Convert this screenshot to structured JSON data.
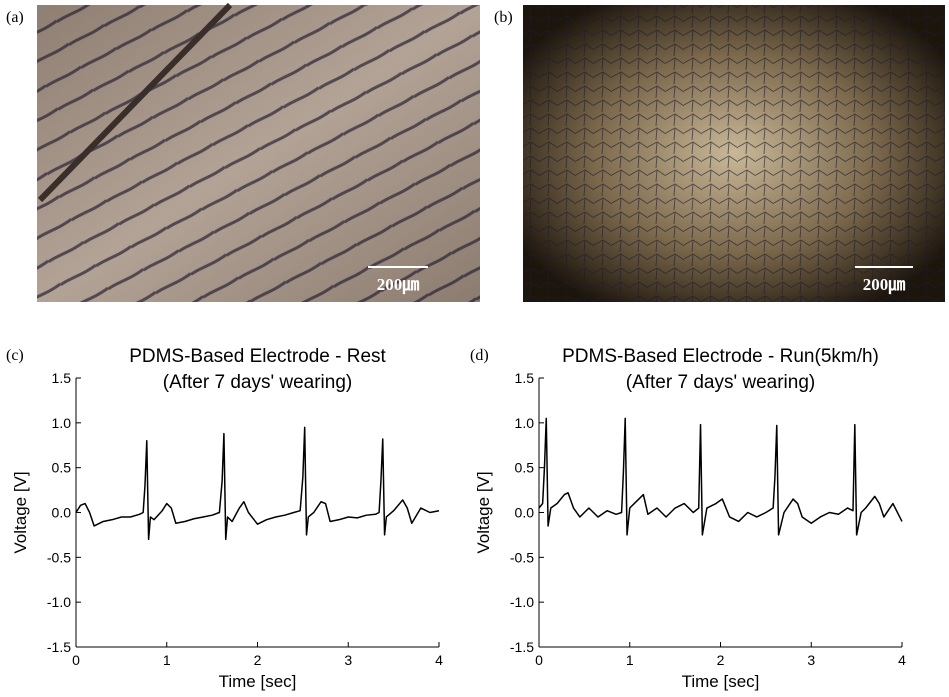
{
  "images": [
    {
      "label": "(a)",
      "scale_bar": "200㎛"
    },
    {
      "label": "(b)",
      "scale_bar": "200㎛"
    }
  ],
  "chart_data": [
    {
      "type": "line",
      "label": "(c)",
      "title": "PDMS-Based Electrode - Rest",
      "subtitle": "(After 7 days' wearing)",
      "x_label": "Time [sec]",
      "y_label": "Voltage [V]",
      "color": "#000000",
      "xlim": [
        0,
        4
      ],
      "ylim": [
        -1.5,
        1.5
      ],
      "xticks": [
        0,
        1,
        2,
        3,
        4
      ],
      "yticks": [
        -1.5,
        {
          "value": -1,
          "label": "-1.0"
        },
        -0.5,
        {
          "value": 0,
          "label": "0.0"
        },
        0.5,
        {
          "value": 1,
          "label": "1.0"
        },
        1.5
      ],
      "x": [
        0,
        0.05,
        0.1,
        0.15,
        0.2,
        0.3,
        0.4,
        0.5,
        0.6,
        0.7,
        0.74,
        0.76,
        0.78,
        0.8,
        0.82,
        0.86,
        0.95,
        1.0,
        1.05,
        1.1,
        1.2,
        1.3,
        1.4,
        1.5,
        1.58,
        1.61,
        1.63,
        1.65,
        1.67,
        1.72,
        1.8,
        1.85,
        1.9,
        2.0,
        2.1,
        2.2,
        2.3,
        2.4,
        2.47,
        2.5,
        2.52,
        2.54,
        2.56,
        2.62,
        2.7,
        2.75,
        2.8,
        2.9,
        3.0,
        3.1,
        3.2,
        3.3,
        3.34,
        3.36,
        3.38,
        3.4,
        3.42,
        3.5,
        3.6,
        3.65,
        3.7,
        3.8,
        3.9,
        4.0
      ],
      "values": [
        0,
        0.08,
        0.1,
        0,
        -0.15,
        -0.1,
        -0.08,
        -0.05,
        -0.05,
        -0.02,
        0,
        0.3,
        0.8,
        -0.3,
        -0.05,
        -0.08,
        0.02,
        0.1,
        0.05,
        -0.12,
        -0.1,
        -0.07,
        -0.05,
        -0.03,
        0,
        0.35,
        0.88,
        -0.3,
        -0.05,
        -0.1,
        0.05,
        0.12,
        0,
        -0.13,
        -0.08,
        -0.05,
        -0.03,
        0,
        0.02,
        0.4,
        0.95,
        -0.25,
        -0.05,
        0,
        0.12,
        0.1,
        -0.1,
        -0.08,
        -0.05,
        -0.06,
        -0.03,
        -0.02,
        0,
        0.35,
        0.82,
        -0.25,
        -0.05,
        0.02,
        0.14,
        0.05,
        -0.12,
        0.05,
        0,
        0.02
      ]
    },
    {
      "type": "line",
      "label": "(d)",
      "title": "PDMS-Based Electrode - Run(5km/h)",
      "subtitle": "(After 7 days' wearing)",
      "x_label": "Time [sec]",
      "y_label": "Voltage [V]",
      "color": "#000000",
      "xlim": [
        0,
        4
      ],
      "ylim": [
        -1.5,
        1.5
      ],
      "xticks": [
        0,
        1,
        2,
        3,
        4
      ],
      "yticks": [
        -1.5,
        {
          "value": -1,
          "label": "-1.0"
        },
        -0.5,
        {
          "value": 0,
          "label": "0.0"
        },
        0.5,
        {
          "value": 1,
          "label": "1.0"
        },
        1.5
      ],
      "x": [
        0,
        0.04,
        0.06,
        0.08,
        0.1,
        0.13,
        0.2,
        0.28,
        0.32,
        0.38,
        0.45,
        0.55,
        0.65,
        0.75,
        0.85,
        0.91,
        0.93,
        0.95,
        0.97,
        1.0,
        1.1,
        1.15,
        1.2,
        1.3,
        1.4,
        1.5,
        1.6,
        1.7,
        1.76,
        1.78,
        1.8,
        1.85,
        1.95,
        2.02,
        2.1,
        2.2,
        2.3,
        2.4,
        2.5,
        2.58,
        2.6,
        2.62,
        2.64,
        2.7,
        2.8,
        2.85,
        2.9,
        3.0,
        3.1,
        3.2,
        3.3,
        3.4,
        3.46,
        3.48,
        3.5,
        3.55,
        3.6,
        3.7,
        3.75,
        3.8,
        3.9,
        4.0
      ],
      "values": [
        0.05,
        0.1,
        0.5,
        1.05,
        -0.15,
        0.05,
        0.1,
        0.2,
        0.22,
        0.05,
        -0.05,
        0.05,
        -0.05,
        0.02,
        -0.02,
        0,
        0.45,
        1.05,
        -0.25,
        0.05,
        0.15,
        0.2,
        -0.02,
        0.05,
        -0.05,
        0.05,
        0.1,
        0,
        0.05,
        0.98,
        -0.25,
        0.05,
        0.1,
        0.15,
        -0.05,
        -0.1,
        0,
        -0.05,
        0,
        0.05,
        0.4,
        0.97,
        -0.25,
        0,
        0.15,
        0.1,
        -0.05,
        -0.12,
        -0.05,
        0,
        -0.02,
        0.05,
        0.02,
        0.98,
        -0.25,
        0,
        0.05,
        0.18,
        0.1,
        -0.05,
        0.1,
        -0.1
      ]
    }
  ]
}
